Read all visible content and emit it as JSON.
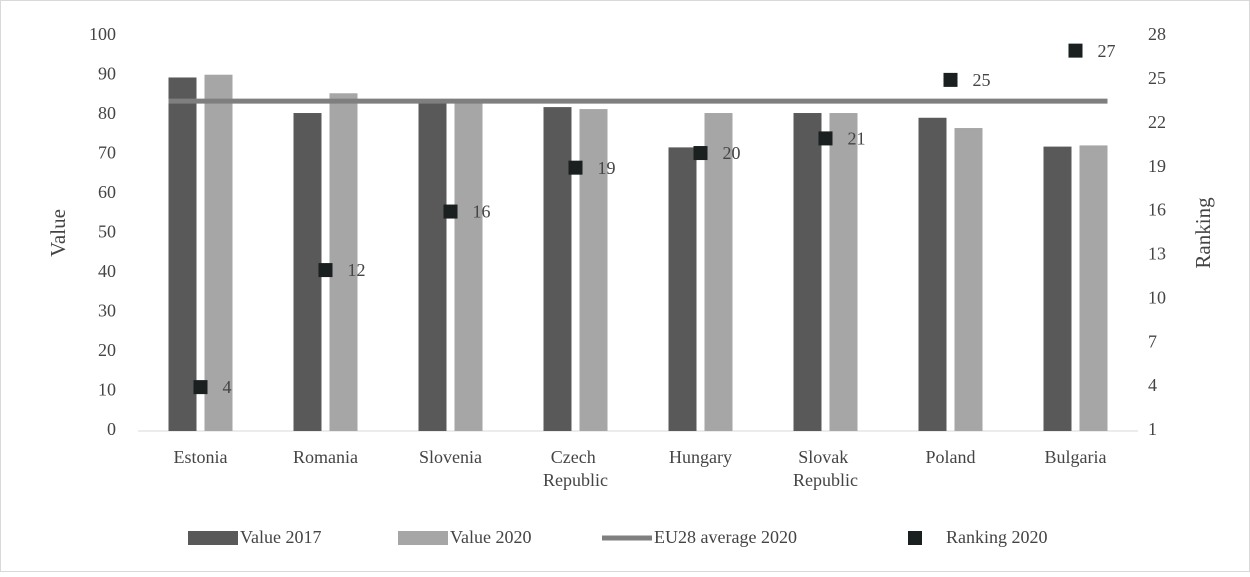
{
  "chart_data": {
    "type": "bar",
    "categories": [
      "Estonia",
      "Romania",
      "Slovenia",
      "Czech Republic",
      "Hungary",
      "Slovak Republic",
      "Poland",
      "Bulgaria"
    ],
    "ylabel": "Value",
    "y2label": "Ranking",
    "ylim": [
      0,
      100
    ],
    "yticks": [
      0,
      10,
      20,
      30,
      40,
      50,
      60,
      70,
      80,
      90,
      100
    ],
    "y2lim": [
      1,
      28
    ],
    "y2ticks": [
      1,
      4,
      7,
      10,
      13,
      16,
      19,
      22,
      25,
      28
    ],
    "grid": false,
    "legend": "bottom",
    "series": [
      {
        "name": "Value 2017",
        "type": "bar",
        "color": "#595959",
        "values": [
          89.5,
          80.5,
          83.5,
          82,
          71.8,
          80.5,
          79.3,
          72
        ]
      },
      {
        "name": "Value 2020",
        "type": "bar",
        "color": "#a6a6a6",
        "values": [
          90.2,
          85.5,
          84,
          81.5,
          80.5,
          80.5,
          76.7,
          72.3
        ]
      },
      {
        "name": "EU28 average 2020",
        "type": "line",
        "color": "#7f7f7f",
        "values": [
          83.5,
          83.5,
          83.5,
          83.5,
          83.5,
          83.5,
          83.5,
          83.5
        ]
      },
      {
        "name": "Ranking 2020",
        "type": "scatter",
        "axis": "y2",
        "color": "#1a1f1f",
        "values": [
          4,
          12,
          16,
          19,
          20,
          21,
          25,
          27
        ]
      }
    ]
  }
}
